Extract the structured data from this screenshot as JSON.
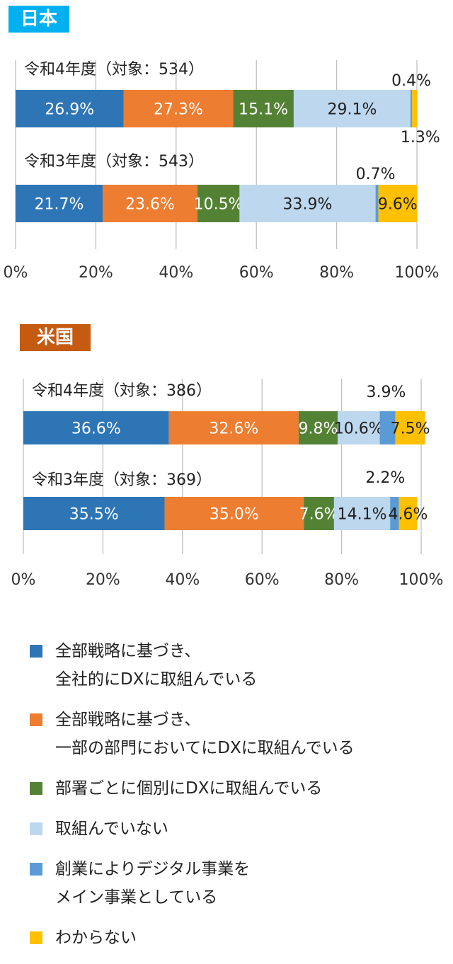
{
  "colors": {
    "cat1": "#2e75b6",
    "cat2": "#ed7d31",
    "cat3": "#548235",
    "cat4": "#bdd7ee",
    "cat5": "#5b9bd5",
    "cat6": "#ffc000",
    "badge_jp": "#00b0f0",
    "badge_us": "#c55a11",
    "axis": "#bfbfbf"
  },
  "legend": [
    {
      "lines": [
        "全部戦略に基づき、",
        "全社的にDXに取組んでいる"
      ]
    },
    {
      "lines": [
        "全部戦略に基づき、",
        "一部の部門においてにDXに取組んでいる"
      ]
    },
    {
      "lines": [
        "部署ごとに個別にDXに取組んでいる"
      ]
    },
    {
      "lines": [
        "取組んでいない"
      ]
    },
    {
      "lines": [
        "創業によりデジタル事業を",
        "メイン事業としている"
      ]
    },
    {
      "lines": [
        "わからない"
      ]
    }
  ],
  "chart_data": [
    {
      "type": "bar",
      "orientation": "horizontal-stacked-100",
      "title": "日本",
      "categories": [
        "令和4年度（対象：534）",
        "令和3年度（対象：543）"
      ],
      "series": [
        {
          "values": [
            26.9,
            21.7
          ],
          "labels": [
            "26.9%",
            "21.7%"
          ]
        },
        {
          "values": [
            27.3,
            23.6
          ],
          "labels": [
            "27.3%",
            "23.6%"
          ]
        },
        {
          "values": [
            15.1,
            10.5
          ],
          "labels": [
            "15.1%",
            "10.5%"
          ]
        },
        {
          "values": [
            29.1,
            33.9
          ],
          "labels": [
            "29.1%",
            "33.9%"
          ]
        },
        {
          "values": [
            0.4,
            0.7
          ],
          "labels": [
            "0.4%",
            "0.7%"
          ]
        },
        {
          "values": [
            1.3,
            9.6
          ],
          "labels": [
            "1.3%",
            "9.6%"
          ]
        }
      ],
      "xlim": [
        0,
        100
      ],
      "xticks": [
        "0%",
        "20%",
        "40%",
        "60%",
        "80%",
        "100%"
      ]
    },
    {
      "type": "bar",
      "orientation": "horizontal-stacked-100",
      "title": "米国",
      "categories": [
        "令和4年度（対象：386）",
        "令和3年度（対象：369）"
      ],
      "series": [
        {
          "values": [
            36.6,
            35.5
          ],
          "labels": [
            "36.6%",
            "35.5%"
          ]
        },
        {
          "values": [
            32.6,
            35.0
          ],
          "labels": [
            "32.6%",
            "35.0%"
          ]
        },
        {
          "values": [
            9.8,
            7.6
          ],
          "labels": [
            "9.8%",
            "7.6%"
          ]
        },
        {
          "values": [
            10.6,
            14.1
          ],
          "labels": [
            "10.6%",
            "14.1%"
          ]
        },
        {
          "values": [
            3.9,
            2.2
          ],
          "labels": [
            "3.9%",
            "2.2%"
          ]
        },
        {
          "values": [
            7.5,
            4.6
          ],
          "labels": [
            "7.5%",
            "4.6%"
          ]
        }
      ],
      "xlim": [
        0,
        100
      ],
      "xticks": [
        "0%",
        "20%",
        "40%",
        "60%",
        "80%",
        "100%"
      ]
    }
  ]
}
